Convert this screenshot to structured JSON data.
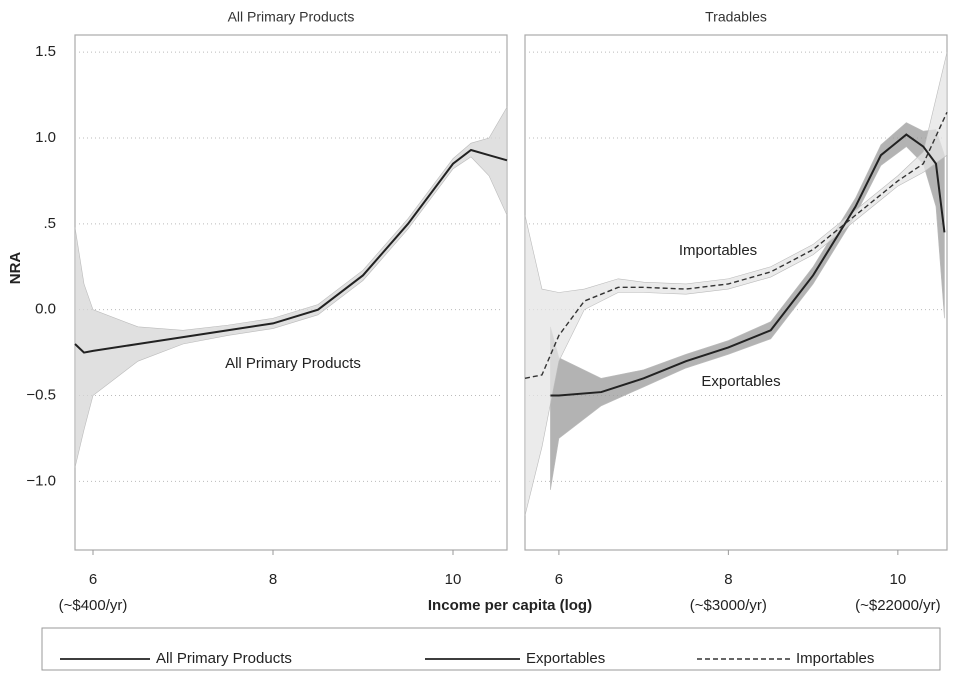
{
  "chart_data": [
    {
      "type": "line",
      "title": "All Primary Products",
      "ylabel": "NRA",
      "xlim": [
        5.8,
        10.6
      ],
      "xticks": [
        6,
        8,
        10
      ],
      "xtick_sublabels": [
        "(~$400/yr)",
        null,
        null
      ],
      "ylim": [
        -1.4,
        1.6
      ],
      "yticks": [
        {
          "value": 1.5,
          "label": "1.5"
        },
        {
          "value": 1,
          "label": "1.0"
        },
        {
          "value": 0.5,
          "label": ".5"
        },
        {
          "value": 0,
          "label": "0.0"
        },
        {
          "value": -0.5,
          "label": "−0.5"
        },
        {
          "value": -1,
          "label": "−1.0"
        }
      ],
      "grid": true,
      "annotations": [
        "All Primary Products"
      ],
      "series": [
        {
          "name": "All Primary Products",
          "color": "#222",
          "dash": false,
          "band_color": "#d6d6d6",
          "x": [
            5.8,
            5.9,
            6.0,
            6.5,
            7.0,
            7.5,
            8.0,
            8.5,
            9.0,
            9.5,
            10.0,
            10.2,
            10.4,
            10.6
          ],
          "values": [
            -0.2,
            -0.25,
            -0.24,
            -0.2,
            -0.16,
            -0.12,
            -0.08,
            0.0,
            0.2,
            0.5,
            0.85,
            0.93,
            0.9,
            0.87
          ],
          "lower": [
            -0.92,
            -0.7,
            -0.5,
            -0.3,
            -0.2,
            -0.15,
            -0.11,
            -0.03,
            0.17,
            0.47,
            0.82,
            0.89,
            0.78,
            0.55
          ],
          "upper": [
            0.48,
            0.15,
            0.0,
            -0.1,
            -0.12,
            -0.09,
            -0.05,
            0.03,
            0.23,
            0.53,
            0.88,
            0.97,
            1.0,
            1.18
          ]
        }
      ]
    },
    {
      "type": "line",
      "title": "Tradables",
      "xlabel": "Income per capita (log)",
      "xlim": [
        5.6,
        10.58
      ],
      "xticks": [
        6,
        8,
        10
      ],
      "xtick_sublabels": [
        null,
        "(~$3000/yr)",
        "(~$22000/yr)"
      ],
      "annotations": [
        "Importables",
        "Exportables"
      ],
      "series": [
        {
          "name": "Exportables",
          "color": "#222",
          "dash": false,
          "band_color": "#9a9a9a",
          "x": [
            5.9,
            6.0,
            6.5,
            7.0,
            7.5,
            8.0,
            8.5,
            9.0,
            9.5,
            9.8,
            10.1,
            10.3,
            10.45,
            10.55
          ],
          "values": [
            -0.5,
            -0.5,
            -0.48,
            -0.4,
            -0.3,
            -0.22,
            -0.12,
            0.2,
            0.6,
            0.9,
            1.02,
            0.95,
            0.85,
            0.45
          ],
          "lower": [
            -1.05,
            -0.75,
            -0.56,
            -0.45,
            -0.34,
            -0.26,
            -0.17,
            0.15,
            0.55,
            0.84,
            0.95,
            0.85,
            0.6,
            -0.05
          ],
          "upper": [
            -0.1,
            -0.28,
            -0.4,
            -0.35,
            -0.26,
            -0.18,
            -0.07,
            0.25,
            0.65,
            0.96,
            1.09,
            1.04,
            1.05,
            0.9
          ]
        },
        {
          "name": "Importables",
          "color": "#333",
          "dash": true,
          "band_color": "#e4e4e4",
          "x": [
            5.6,
            5.8,
            6.0,
            6.3,
            6.7,
            7.0,
            7.5,
            8.0,
            8.5,
            9.0,
            9.5,
            10.0,
            10.3,
            10.58
          ],
          "values": [
            -0.4,
            -0.38,
            -0.15,
            0.05,
            0.13,
            0.13,
            0.12,
            0.15,
            0.22,
            0.35,
            0.55,
            0.75,
            0.85,
            1.15
          ],
          "lower": [
            -1.2,
            -0.8,
            -0.3,
            0.0,
            0.1,
            0.1,
            0.09,
            0.12,
            0.19,
            0.32,
            0.52,
            0.72,
            0.8,
            0.9
          ],
          "upper": [
            0.55,
            0.12,
            0.1,
            0.12,
            0.18,
            0.16,
            0.15,
            0.18,
            0.25,
            0.38,
            0.58,
            0.78,
            0.92,
            1.5
          ]
        }
      ]
    }
  ]
}
